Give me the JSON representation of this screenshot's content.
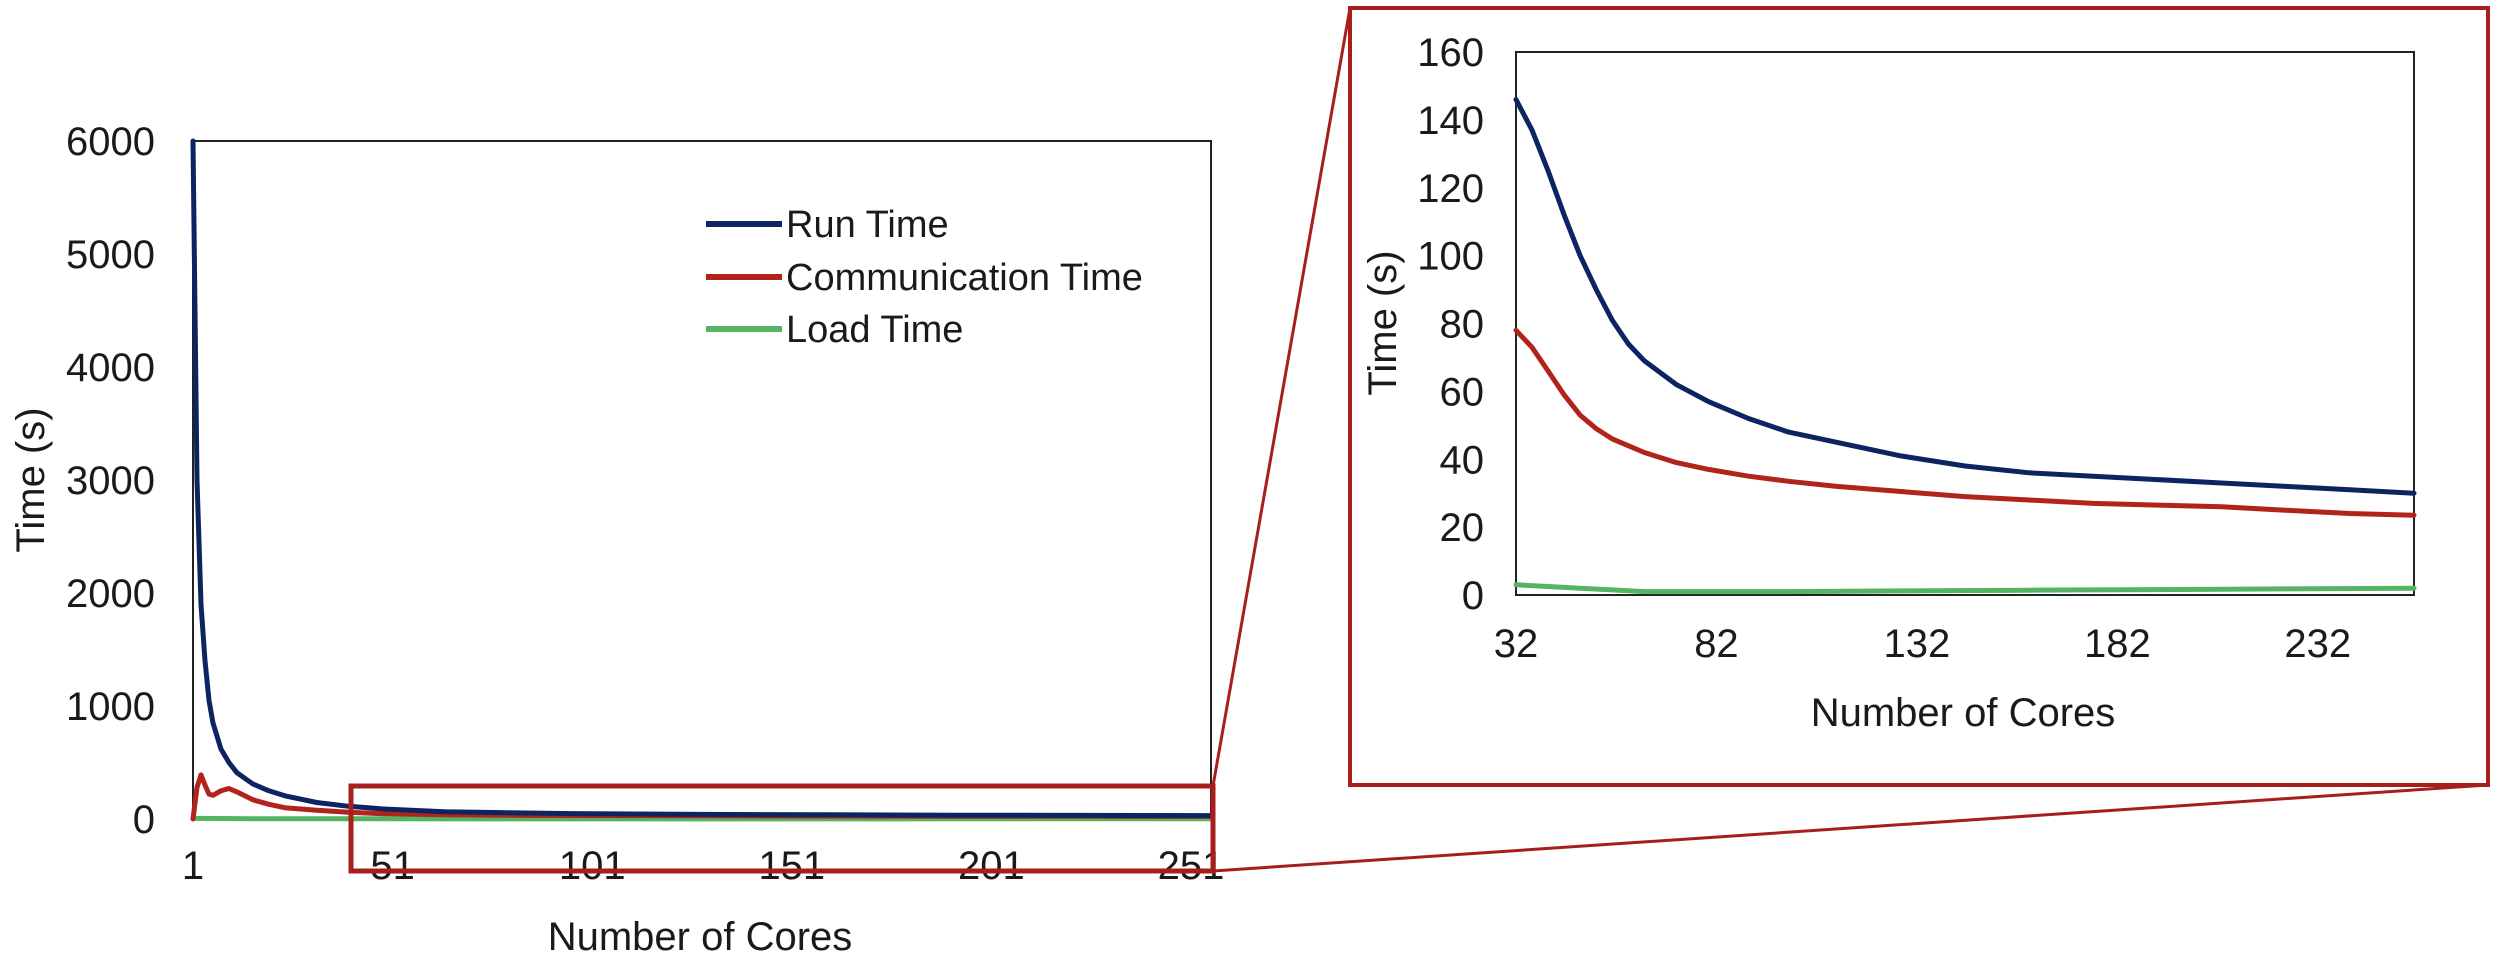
{
  "colors": {
    "run": "#0d2462",
    "comm": "#b0241b",
    "load": "#55b461",
    "zoom": "#a61f1c"
  },
  "chart_data": [
    {
      "type": "line",
      "title": "",
      "xlabel": "Number of Cores",
      "ylabel": "Time (s)",
      "xlim": [
        1,
        256
      ],
      "ylim": [
        0,
        6000
      ],
      "xticks": [
        "1",
        "51",
        "101",
        "151",
        "201",
        "251"
      ],
      "yticks": [
        "0",
        "1000",
        "2000",
        "3000",
        "4000",
        "5000",
        "6000"
      ],
      "legend": {
        "position": "top-right",
        "entries": [
          "Run Time",
          "Communication Time",
          "Load Time"
        ]
      },
      "series": [
        {
          "name": "Run Time",
          "color": "#0d2462",
          "x": [
            1,
            2,
            3,
            4,
            5,
            6,
            8,
            10,
            12,
            16,
            20,
            24,
            32,
            40,
            48,
            64,
            80,
            96,
            128,
            160,
            192,
            224,
            256
          ],
          "y": [
            6000,
            3000,
            1900,
            1400,
            1050,
            850,
            620,
            500,
            410,
            310,
            250,
            205,
            146,
            112,
            90,
            65,
            55,
            48,
            41,
            37,
            34,
            32,
            30
          ]
        },
        {
          "name": "Communication Time",
          "color": "#b0241b",
          "x": [
            1,
            2,
            3,
            4,
            5,
            6,
            8,
            10,
            12,
            16,
            20,
            24,
            32,
            40,
            48,
            64,
            80,
            96,
            128,
            160,
            192,
            224,
            256
          ],
          "y": [
            0,
            280,
            390,
            300,
            220,
            210,
            250,
            270,
            240,
            170,
            130,
            100,
            78,
            60,
            48,
            38,
            33,
            31,
            28,
            26,
            25,
            24,
            23
          ]
        },
        {
          "name": "Load Time",
          "color": "#55b461",
          "x": [
            1,
            8,
            16,
            32,
            48,
            64,
            96,
            128,
            192,
            256
          ],
          "y": [
            5,
            4,
            3,
            3,
            2,
            1,
            1,
            1,
            2,
            2
          ]
        }
      ]
    },
    {
      "type": "line",
      "title": "",
      "xlabel": "Number of Cores",
      "ylabel": "Time (s)",
      "xlim": [
        32,
        256
      ],
      "ylim": [
        0,
        160
      ],
      "xticks": [
        "32",
        "82",
        "132",
        "182",
        "232"
      ],
      "yticks": [
        "0",
        "20",
        "40",
        "60",
        "80",
        "100",
        "120",
        "140",
        "160"
      ],
      "series": [
        {
          "name": "Run Time",
          "color": "#0d2462",
          "x": [
            32,
            36,
            40,
            44,
            48,
            52,
            56,
            60,
            64,
            72,
            80,
            90,
            100,
            112,
            128,
            144,
            160,
            176,
            192,
            208,
            224,
            240,
            256
          ],
          "y": [
            146,
            137,
            125,
            112,
            100,
            90,
            81,
            74,
            69,
            62,
            57,
            52,
            48,
            45,
            41,
            38,
            36,
            35,
            34,
            33,
            32,
            31,
            30
          ]
        },
        {
          "name": "Communication Time",
          "color": "#b0241b",
          "x": [
            32,
            36,
            40,
            44,
            48,
            52,
            56,
            60,
            64,
            72,
            80,
            90,
            100,
            112,
            128,
            144,
            160,
            176,
            192,
            208,
            224,
            240,
            256
          ],
          "y": [
            78,
            73,
            66,
            59,
            53,
            49,
            46,
            44,
            42,
            39,
            37,
            35,
            33.5,
            32,
            30.5,
            29,
            28,
            27,
            26.5,
            26,
            25,
            24,
            23.5
          ]
        },
        {
          "name": "Load Time",
          "color": "#55b461",
          "x": [
            32,
            40,
            48,
            56,
            64,
            80,
            100,
            128,
            160,
            192,
            224,
            256
          ],
          "y": [
            3,
            2.5,
            2,
            1.5,
            1,
            1,
            1,
            1.2,
            1.4,
            1.6,
            1.8,
            2
          ]
        }
      ]
    }
  ]
}
